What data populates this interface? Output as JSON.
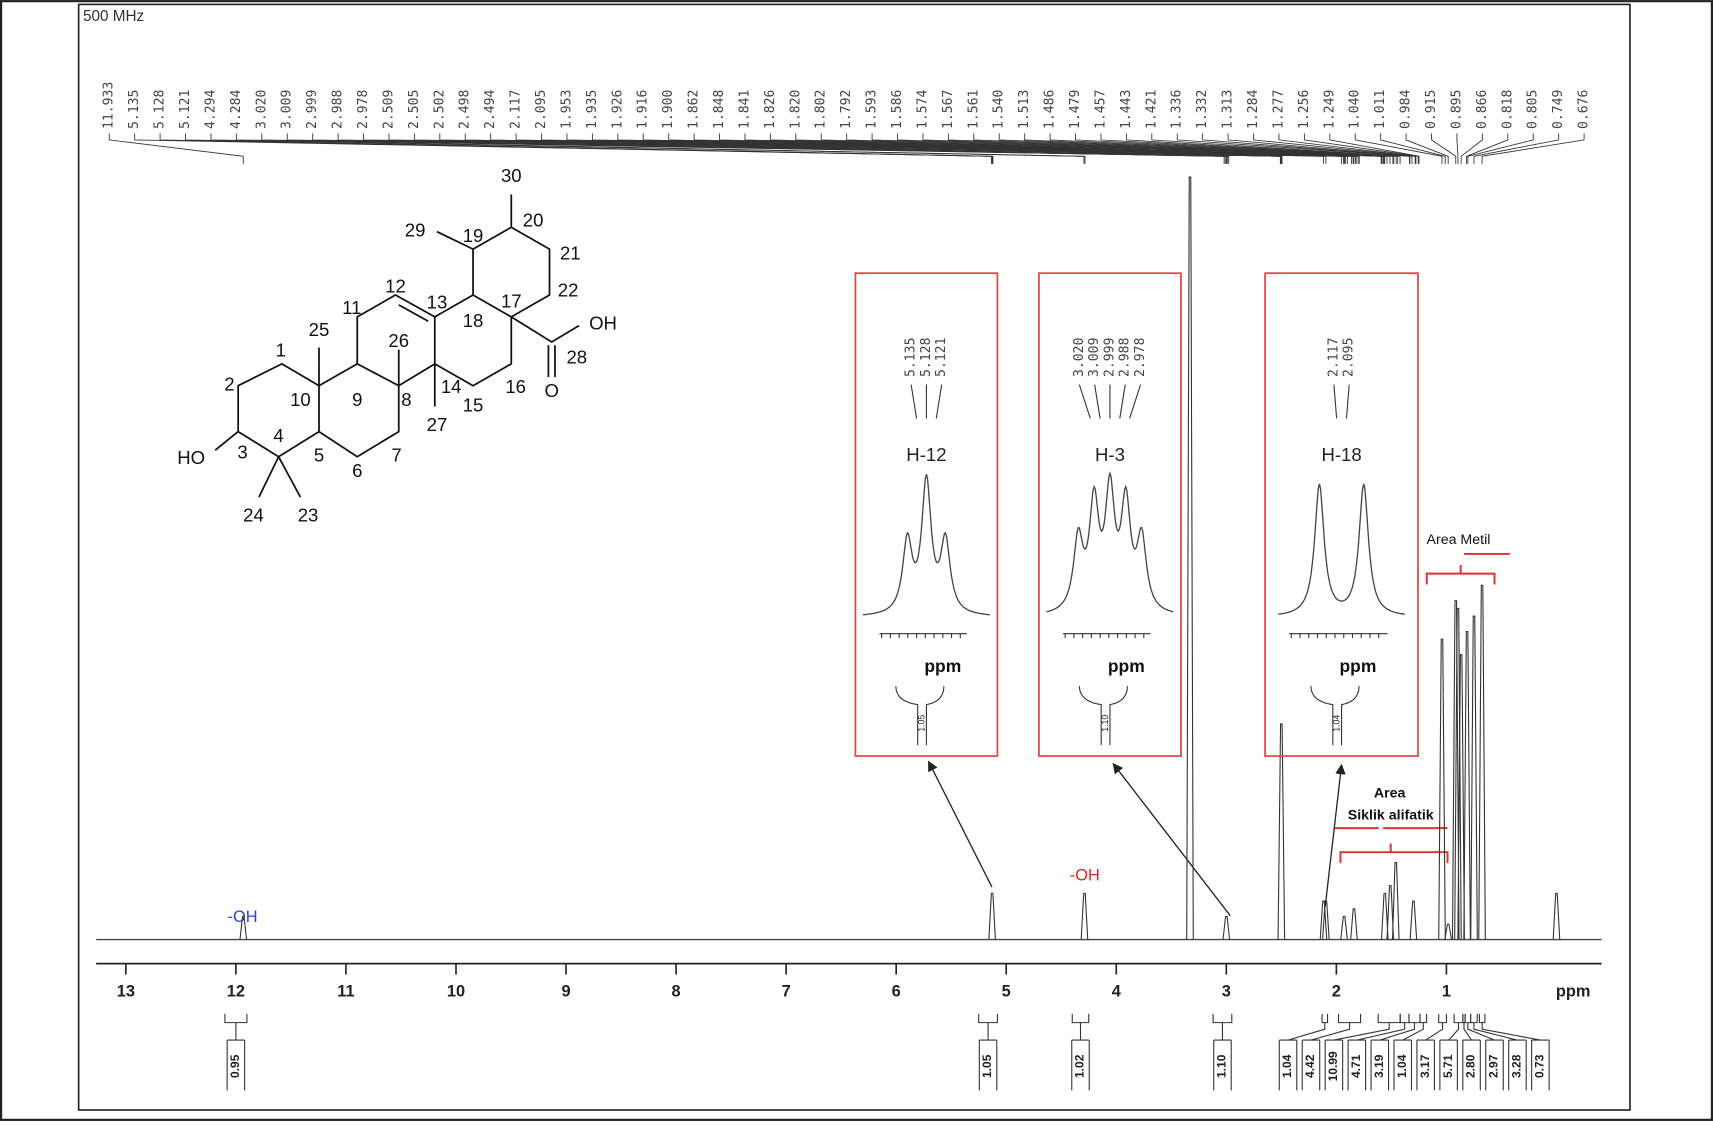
{
  "chart_data": {
    "type": "spectrum",
    "header": "500 MHz",
    "xlabel": "ppm",
    "xlim": [
      13.27,
      -0.41
    ],
    "xticks": [
      13,
      12,
      11,
      10,
      9,
      8,
      7,
      6,
      5,
      4,
      3,
      2,
      1
    ],
    "ylim": [
      0,
      100
    ],
    "peaks": [
      11.933,
      5.135,
      5.128,
      5.121,
      4.294,
      4.284,
      {
        "value": 3.02,
        "label": "3.020"
      },
      3.009,
      2.999,
      2.988,
      2.978,
      2.509,
      2.505,
      2.502,
      2.498,
      2.494,
      2.117,
      2.095,
      1.953,
      1.935,
      1.926,
      1.916,
      {
        "value": 1.9,
        "label": "1.900"
      },
      1.862,
      1.848,
      1.841,
      1.826,
      {
        "value": 1.82,
        "label": "1.820"
      },
      1.802,
      1.792,
      1.593,
      1.586,
      1.574,
      1.567,
      1.561,
      {
        "value": 1.54,
        "label": "1.540"
      },
      1.513,
      1.486,
      1.479,
      1.457,
      1.443,
      1.421,
      1.336,
      1.332,
      1.313,
      1.284,
      1.277,
      1.256,
      1.249,
      {
        "value": 1.04,
        "label": "1.040"
      },
      1.011,
      0.984,
      0.915,
      0.895,
      0.866,
      0.818,
      0.805,
      0.749,
      0.676
    ],
    "signals": {
      "x": [
        11.933,
        5.128,
        4.289,
        3.33,
        3.0,
        2.5,
        2.117,
        2.095,
        1.93,
        1.84,
        1.56,
        1.51,
        1.46,
        1.3,
        1.04,
        0.984,
        0.915,
        0.895,
        0.866,
        0.812,
        0.749,
        0.676,
        0.0
      ],
      "y": [
        3,
        6,
        6,
        99,
        3,
        28,
        5,
        5,
        3,
        4,
        6,
        7,
        10,
        5,
        39,
        2,
        44,
        43,
        37,
        40,
        42,
        46,
        6
      ]
    },
    "integrals": [
      {
        "range": [
          12.1,
          11.9
        ],
        "value": 0.95
      },
      {
        "range": [
          5.25,
          5.08
        ],
        "value": 1.05
      },
      {
        "range": [
          4.4,
          4.25
        ],
        "value": 1.02
      },
      {
        "range": [
          3.12,
          2.95
        ],
        "value": {
          "value": 1.1,
          "label": "1.10"
        }
      },
      {
        "range": [
          2.13,
          2.08
        ],
        "value": 1.04
      },
      {
        "range": [
          1.98,
          1.78
        ],
        "value": 4.42
      },
      {
        "range": [
          1.62,
          1.42
        ],
        "value": 10.99
      },
      {
        "range": [
          1.42,
          1.34
        ],
        "value": 4.71
      },
      {
        "range": [
          1.34,
          1.24
        ],
        "value": 3.19
      },
      {
        "range": [
          1.24,
          1.18
        ],
        "value": 1.04
      },
      {
        "range": [
          1.07,
          1.0
        ],
        "value": 3.17
      },
      {
        "range": [
          0.93,
          0.85
        ],
        "value": 5.71
      },
      {
        "range": [
          0.85,
          0.83
        ],
        "value": {
          "value": 2.8,
          "label": "2.80"
        }
      },
      {
        "range": [
          0.83,
          0.78
        ],
        "value": 2.97
      },
      {
        "range": [
          0.78,
          0.72
        ],
        "value": 3.28
      },
      {
        "range": [
          0.7,
          0.65
        ],
        "value": 0.73
      }
    ],
    "insets": [
      {
        "title": "H-12",
        "labels": [
          "5.135",
          "5.128",
          "5.121"
        ],
        "xlabel": "ppm",
        "integral": 1.05
      },
      {
        "title": "H-3",
        "labels": [
          "3.020",
          "3.009",
          "2.999",
          "2.988",
          "2.978"
        ],
        "xlabel": "ppm",
        "integral": {
          "value": 1.1,
          "label": "1.10"
        }
      },
      {
        "title": "H-18",
        "labels": [
          "2.117",
          "2.095"
        ],
        "xlabel": "ppm",
        "integral": 1.04
      }
    ],
    "annotations": {
      "oh_acid": "-OH",
      "oh_alcohol": "-OH",
      "methyl_area": "Area Metil",
      "area": "Area",
      "aliphatic": "Siklik alifatik"
    },
    "structure": {
      "labels": [
        "30",
        "29",
        "19",
        "20",
        "21",
        "22",
        "12",
        "11",
        "13",
        "17",
        "OH",
        "25",
        "26",
        "18",
        "1",
        "28",
        "2",
        "14",
        "16",
        "O",
        "10",
        "9",
        "8",
        "15",
        "HO",
        "3",
        "4",
        "5",
        "7",
        "27",
        "6",
        "24",
        "23"
      ]
    }
  }
}
